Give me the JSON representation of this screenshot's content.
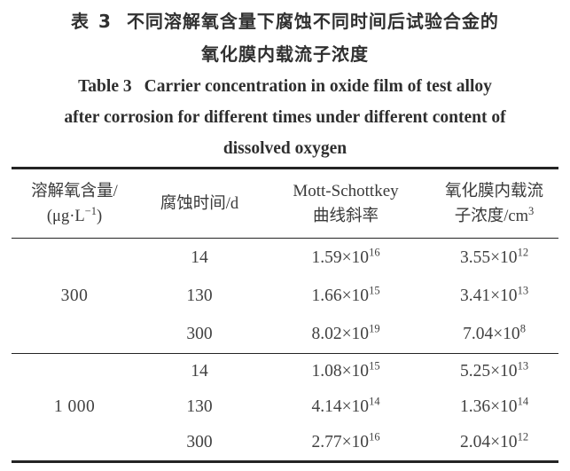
{
  "page": {
    "background_color": "#ffffff",
    "text_color": "#3a3a3a",
    "rule_color": "#242424"
  },
  "title": {
    "zh_label": "表 3",
    "zh_line1": "不同溶解氧含量下腐蚀不同时间后试验合金的",
    "zh_line2": "氧化膜内载流子浓度",
    "en_label": "Table 3",
    "en_line1": "Carrier concentration in oxide film of test alloy",
    "en_line2": "after corrosion for different times under different content of",
    "en_line3": "dissolved oxygen"
  },
  "table": {
    "times_ten": "×10",
    "columns": [
      {
        "line1": "溶解氧含量/",
        "line2_prefix": "(μg·L",
        "line2_sup": "−1",
        "line2_suffix": ")"
      },
      {
        "line1": "腐蚀时间/d"
      },
      {
        "line1": "Mott-Schottkey",
        "line2": "曲线斜率"
      },
      {
        "line1": "氧化膜内载流",
        "line2_prefix": "子浓度/cm",
        "line2_sup": "3",
        "line2_suffix": ""
      }
    ],
    "groups": [
      {
        "dissolved_oxygen": "300",
        "rows": [
          {
            "time_d": "14",
            "slope": {
              "coefficient": "1.59",
              "exponent": "16"
            },
            "carrier_concentration": {
              "coefficient": "3.55",
              "exponent": "12"
            }
          },
          {
            "time_d": "130",
            "slope": {
              "coefficient": "1.66",
              "exponent": "15"
            },
            "carrier_concentration": {
              "coefficient": "3.41",
              "exponent": "13"
            }
          },
          {
            "time_d": "300",
            "slope": {
              "coefficient": "8.02",
              "exponent": "19"
            },
            "carrier_concentration": {
              "coefficient": "7.04",
              "exponent": "8"
            }
          }
        ]
      },
      {
        "dissolved_oxygen": "1 000",
        "rows": [
          {
            "time_d": "14",
            "slope": {
              "coefficient": "1.08",
              "exponent": "15"
            },
            "carrier_concentration": {
              "coefficient": "5.25",
              "exponent": "13"
            }
          },
          {
            "time_d": "130",
            "slope": {
              "coefficient": "4.14",
              "exponent": "14"
            },
            "carrier_concentration": {
              "coefficient": "1.36",
              "exponent": "14"
            }
          },
          {
            "time_d": "300",
            "slope": {
              "coefficient": "2.77",
              "exponent": "16"
            },
            "carrier_concentration": {
              "coefficient": "2.04",
              "exponent": "12"
            }
          }
        ]
      }
    ]
  }
}
